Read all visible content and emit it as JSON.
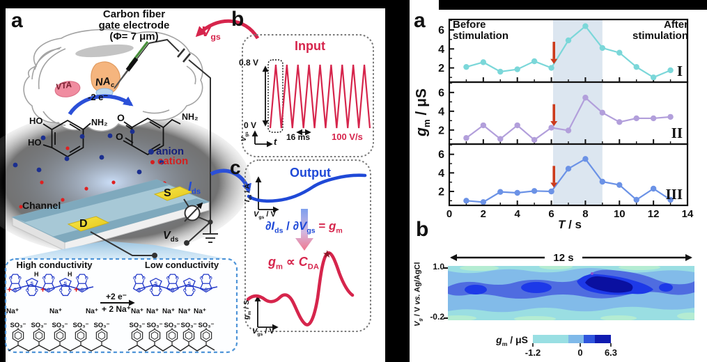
{
  "colors": {
    "crimson": "#d6254c",
    "blue": "#1f49d7",
    "arrow_red": "#cc3a1b",
    "stim_shade": "#dce6f0",
    "anion_text": "#16207a",
    "cation_text": "#d41f1f"
  },
  "left": {
    "panel_label": "a",
    "electrode_title": [
      "Carbon fiber",
      "gate electrode",
      "(Φ= 7 μm)"
    ],
    "brain": {
      "vta": "VTA",
      "nac": [
        {
          "t": "NA",
          "i": 1
        },
        {
          "t": "c",
          "sub": 1,
          "i": 1
        }
      ]
    },
    "oxidation_label": "-2 e⁻",
    "molecules": {
      "ho_top": "HO",
      "ho_bottom": "HO",
      "amine_left": "NH₂",
      "o_top": "O",
      "o_bottom": "O",
      "amine_right": "NH₂"
    },
    "ion_legend": {
      "anion": "anion",
      "cation": "cation"
    },
    "device": {
      "channel": "Channel",
      "drain": "D",
      "source": "S"
    },
    "circuit": {
      "vgs": [
        {
          "t": "V",
          "i": 1
        },
        {
          "t": "gs",
          "sub": 1
        }
      ],
      "vds": [
        {
          "t": "V",
          "i": 1
        },
        {
          "t": "ds",
          "sub": 1
        }
      ],
      "ids": [
        {
          "t": "I",
          "i": 1
        },
        {
          "t": "ds",
          "sub": 1
        }
      ]
    },
    "inset": {
      "high": "High conductivity",
      "low": "Low conductivity",
      "reaction_top": "+2 e⁻",
      "reaction_bottom": "+ 2 Na⁺",
      "sodium": "Na⁺",
      "sulfonate": "SO₃⁻",
      "sulfur": "S",
      "oxygen": "O",
      "hydrogen": "H",
      "charge": "+"
    }
  },
  "input_panel": {
    "panel_label": "b",
    "title": "Input",
    "v_high_label": "0.8 V",
    "v_low_label": "0 V",
    "period_label": "16 ms",
    "rate_label": "100 V/s",
    "x_axis": [
      {
        "t": "t",
        "i": 1
      }
    ],
    "y_axis": [
      {
        "t": "V",
        "i": 1
      },
      {
        "t": "gs",
        "sub": 1
      }
    ]
  },
  "output_panel": {
    "panel_label": "c",
    "title": "Output",
    "ids_axis": [
      {
        "t": "I",
        "i": 1
      },
      {
        "t": "ds",
        "sub": 1
      },
      {
        "t": " / A"
      }
    ],
    "vgs_axis": [
      {
        "t": "V",
        "i": 1
      },
      {
        "t": "gs",
        "sub": 1
      },
      {
        "t": " / V"
      }
    ],
    "gm_axis": [
      {
        "t": "g",
        "i": 1
      },
      {
        "t": "m",
        "sub": 1
      },
      {
        "t": " / S"
      }
    ],
    "derivative": [
      {
        "t": "∂",
        "i": 1,
        "c": "#1f49d7"
      },
      {
        "t": "I",
        "i": 1,
        "c": "#1f49d7"
      },
      {
        "t": "ds",
        "sub": 1,
        "c": "#1f49d7"
      },
      {
        "t": " / ",
        "c": "#1f49d7"
      },
      {
        "t": "∂",
        "i": 1,
        "c": "#1f49d7"
      },
      {
        "t": "V",
        "i": 1,
        "c": "#1f49d7"
      },
      {
        "t": "gs",
        "sub": 1,
        "c": "#1f49d7"
      },
      {
        "t": " = ",
        "c": "#d6254c"
      },
      {
        "t": "g",
        "i": 1,
        "c": "#d6254c"
      },
      {
        "t": "m",
        "sub": 1,
        "c": "#d6254c"
      }
    ],
    "proportionality": [
      {
        "t": "g",
        "i": 1
      },
      {
        "t": "m",
        "sub": 1
      },
      {
        "t": " ∝ "
      },
      {
        "t": "C",
        "i": 1
      },
      {
        "t": "DA",
        "sub": 1
      }
    ]
  },
  "right": {
    "panel_label_a": "a",
    "panel_label_b": "b",
    "before_annotation": "Before\nstimulation",
    "after_annotation": "After\nstimulation",
    "y_label": [
      {
        "t": "g",
        "i": 1
      },
      {
        "t": "m",
        "sub": 1
      },
      {
        "t": " / μS"
      }
    ],
    "x_label": [
      {
        "t": "T",
        "i": 1
      },
      {
        "t": " / s"
      }
    ],
    "heatmap": {
      "duration_label": "12 s",
      "y_label": [
        {
          "t": "V",
          "i": 1
        },
        {
          "t": "g",
          "sub": 1,
          "i": 1
        },
        {
          "t": " / V "
        },
        {
          "t": "vs.",
          "i": 1
        },
        {
          "t": " Ag/AgCl"
        }
      ],
      "y_tick_top": "1.0",
      "y_tick_bottom": "-0.2",
      "colorbar_label": [
        {
          "t": "g",
          "i": 1
        },
        {
          "t": "m",
          "sub": 1
        },
        {
          "t": " / μS"
        }
      ]
    }
  },
  "chart_data": [
    {
      "id": "gm_time_series",
      "type": "line",
      "title": "",
      "xlabel": "T / s",
      "ylabel": "gm / μS",
      "xlim": [
        0,
        14
      ],
      "ylim": [
        0.5,
        7.1
      ],
      "xticks": [
        0,
        2,
        4,
        6,
        8,
        10,
        12,
        14
      ],
      "yticks": [
        2,
        4,
        6
      ],
      "x": [
        1,
        2,
        3,
        4,
        5,
        6,
        7,
        8,
        9,
        10,
        11,
        12,
        13
      ],
      "series": [
        {
          "name": "I",
          "color": "#7bd7d9",
          "values": [
            2.1,
            2.6,
            1.6,
            1.85,
            2.7,
            2.0,
            4.9,
            6.4,
            4.1,
            3.6,
            2.1,
            1.0,
            1.75
          ]
        },
        {
          "name": "II",
          "color": "#b29fdb",
          "values": [
            1.15,
            2.5,
            1.05,
            2.5,
            0.95,
            2.25,
            1.95,
            5.45,
            3.85,
            2.85,
            3.25,
            3.25,
            3.4
          ]
        },
        {
          "name": "III",
          "color": "#6b92e6",
          "values": [
            1.0,
            0.85,
            1.95,
            1.85,
            2.05,
            2.0,
            4.45,
            5.5,
            3.05,
            2.7,
            1.1,
            2.3,
            1.1
          ]
        }
      ],
      "stimulation_window": [
        6.1,
        9.0
      ],
      "stimulus_arrow_x": 6.15,
      "annotations": [
        "Before stimulation",
        "After stimulation"
      ],
      "grid": false
    },
    {
      "id": "gm_heatmap",
      "type": "heatmap",
      "x_span_label": "12 s",
      "ylabel": "Vg / V vs. Ag/AgCl",
      "yticks": [
        1.0,
        -0.2
      ],
      "colorbar": {
        "label": "gm / μS",
        "tick_labels": [
          "-1.2",
          "0",
          "6.3"
        ],
        "colors": [
          "#99dfe3",
          "#7fb9e9",
          "#2f55dd",
          "#101bb0"
        ]
      }
    },
    {
      "id": "gate_input_wave",
      "type": "line",
      "waveform": "triangle",
      "v_low": 0,
      "v_high": 0.8,
      "cycles": 9,
      "period_label": "16 ms",
      "scan_rate_label": "100 V/s"
    }
  ]
}
